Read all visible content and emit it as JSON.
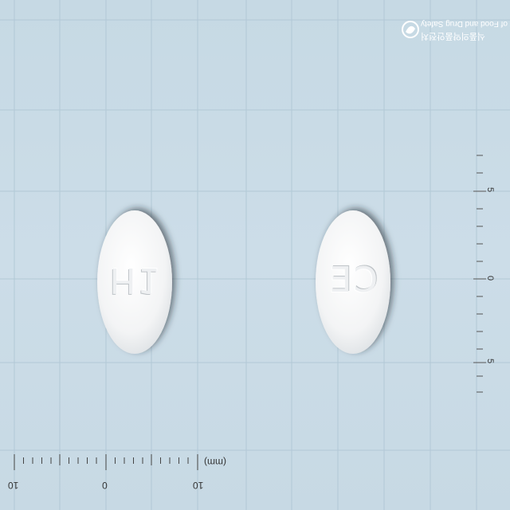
{
  "photo": {
    "logo_icon": "mfds-logo-icon",
    "logo_text_en": "Ministry of Food and Drug Safety",
    "logo_text_kr": "식품의약품안전처",
    "pills": [
      {
        "imprint": "H1"
      },
      {
        "imprint": "CE"
      }
    ],
    "ruler": {
      "unit": "(mm)",
      "labels": [
        "10",
        "0",
        "10"
      ]
    },
    "side_scale": {
      "labels": [
        "5",
        "0",
        "5"
      ]
    }
  }
}
